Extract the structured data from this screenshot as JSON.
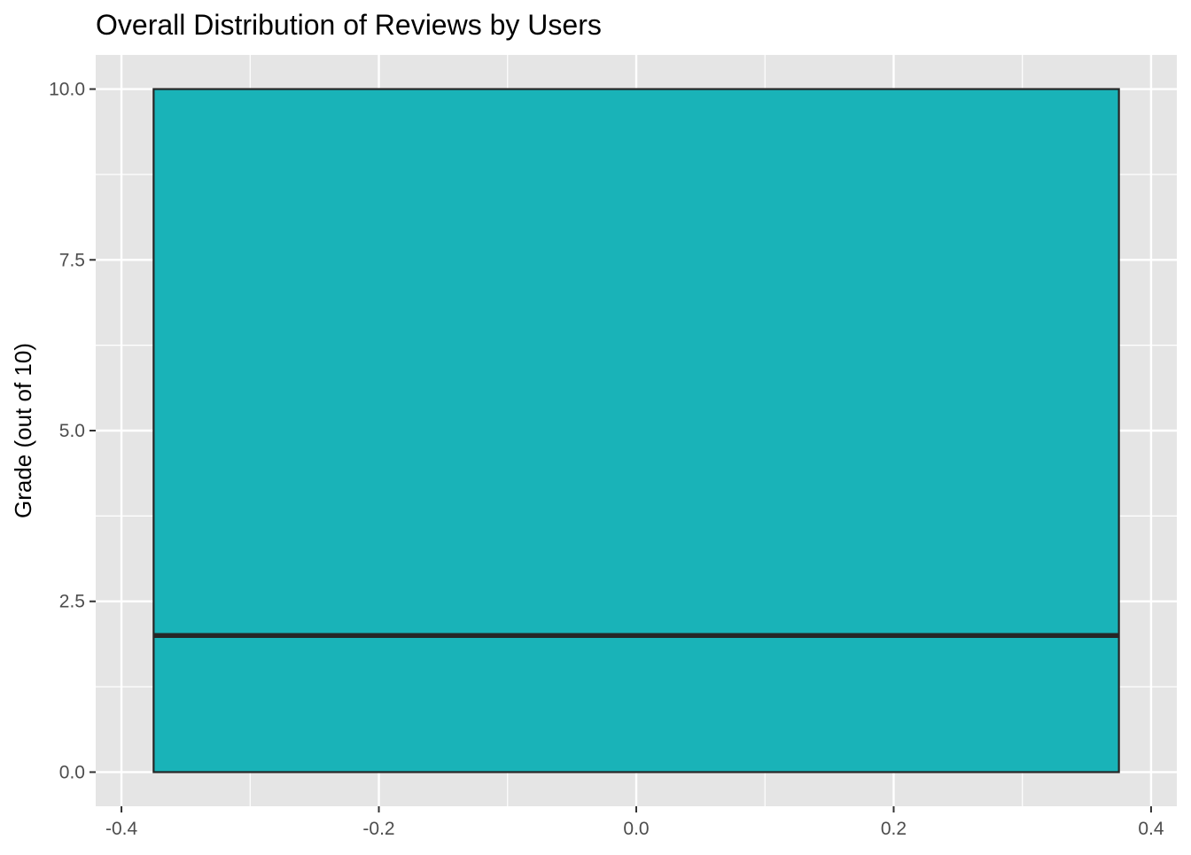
{
  "chart_data": {
    "type": "boxplot",
    "title": "Overall Distribution of Reviews by Users",
    "xlabel": "",
    "ylabel": "Grade (out of 10)",
    "xlim": [
      -0.42,
      0.42
    ],
    "ylim": [
      -0.5,
      10.5
    ],
    "x_ticks": [
      -0.4,
      -0.2,
      0.0,
      0.2,
      0.4
    ],
    "x_tick_labels": [
      "-0.4",
      "-0.2",
      "0.0",
      "0.2",
      "0.4"
    ],
    "y_ticks": [
      0.0,
      2.5,
      5.0,
      7.5,
      10.0
    ],
    "y_tick_labels": [
      "0.0",
      "2.5",
      "5.0",
      "7.5",
      "10.0"
    ],
    "grid": true,
    "box": {
      "x_left": -0.375,
      "x_right": 0.375,
      "min": 0,
      "q1": 0,
      "median": 2,
      "q3": 10,
      "max": 10
    },
    "colors": {
      "panel_background": "#e5e5e5",
      "grid": "#ffffff",
      "box_fill": "#19b3b8",
      "box_outline": "#262626",
      "tick": "#333333"
    }
  }
}
